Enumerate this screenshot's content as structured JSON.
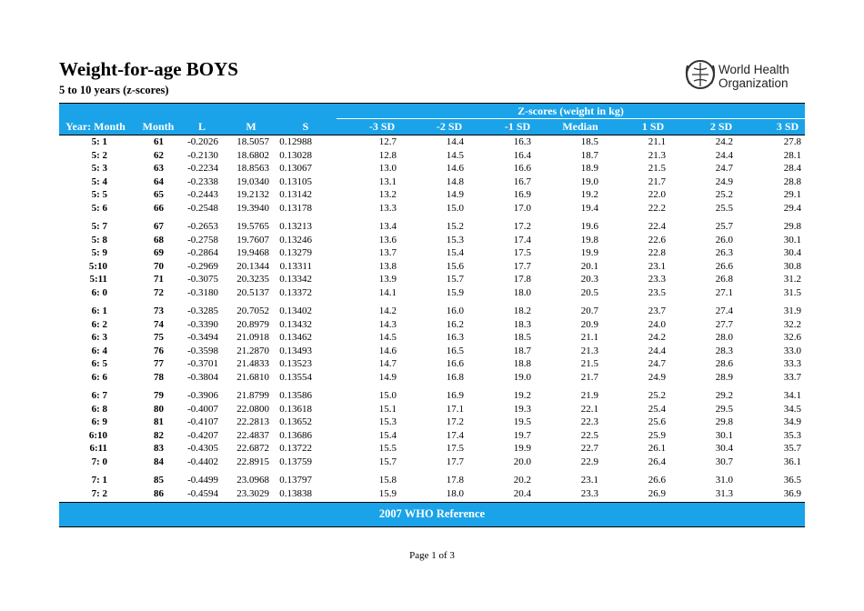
{
  "header": {
    "title": "Weight-for-age BOYS",
    "subtitle": "5 to 10 years (z-scores)",
    "logo": [
      "World Health",
      "Organization"
    ]
  },
  "table": {
    "group_header": "Z-scores (weight in kg)",
    "columns": [
      "Year: Month",
      "Month",
      "L",
      "M",
      "S",
      "-3 SD",
      "-2 SD",
      "-1 SD",
      "Median",
      "1 SD",
      "2 SD",
      "3 SD"
    ],
    "rows": [
      [
        "5: 1",
        "61",
        "-0.2026",
        "18.5057",
        "0.12988",
        "12.7",
        "14.4",
        "16.3",
        "18.5",
        "21.1",
        "24.2",
        "27.8"
      ],
      [
        "5: 2",
        "62",
        "-0.2130",
        "18.6802",
        "0.13028",
        "12.8",
        "14.5",
        "16.4",
        "18.7",
        "21.3",
        "24.4",
        "28.1"
      ],
      [
        "5: 3",
        "63",
        "-0.2234",
        "18.8563",
        "0.13067",
        "13.0",
        "14.6",
        "16.6",
        "18.9",
        "21.5",
        "24.7",
        "28.4"
      ],
      [
        "5: 4",
        "64",
        "-0.2338",
        "19.0340",
        "0.13105",
        "13.1",
        "14.8",
        "16.7",
        "19.0",
        "21.7",
        "24.9",
        "28.8"
      ],
      [
        "5: 5",
        "65",
        "-0.2443",
        "19.2132",
        "0.13142",
        "13.2",
        "14.9",
        "16.9",
        "19.2",
        "22.0",
        "25.2",
        "29.1"
      ],
      [
        "5: 6",
        "66",
        "-0.2548",
        "19.3940",
        "0.13178",
        "13.3",
        "15.0",
        "17.0",
        "19.4",
        "22.2",
        "25.5",
        "29.4"
      ],
      [
        "5: 7",
        "67",
        "-0.2653",
        "19.5765",
        "0.13213",
        "13.4",
        "15.2",
        "17.2",
        "19.6",
        "22.4",
        "25.7",
        "29.8"
      ],
      [
        "5: 8",
        "68",
        "-0.2758",
        "19.7607",
        "0.13246",
        "13.6",
        "15.3",
        "17.4",
        "19.8",
        "22.6",
        "26.0",
        "30.1"
      ],
      [
        "5: 9",
        "69",
        "-0.2864",
        "19.9468",
        "0.13279",
        "13.7",
        "15.4",
        "17.5",
        "19.9",
        "22.8",
        "26.3",
        "30.4"
      ],
      [
        "5:10",
        "70",
        "-0.2969",
        "20.1344",
        "0.13311",
        "13.8",
        "15.6",
        "17.7",
        "20.1",
        "23.1",
        "26.6",
        "30.8"
      ],
      [
        "5:11",
        "71",
        "-0.3075",
        "20.3235",
        "0.13342",
        "13.9",
        "15.7",
        "17.8",
        "20.3",
        "23.3",
        "26.8",
        "31.2"
      ],
      [
        "6: 0",
        "72",
        "-0.3180",
        "20.5137",
        "0.13372",
        "14.1",
        "15.9",
        "18.0",
        "20.5",
        "23.5",
        "27.1",
        "31.5"
      ],
      [
        "6: 1",
        "73",
        "-0.3285",
        "20.7052",
        "0.13402",
        "14.2",
        "16.0",
        "18.2",
        "20.7",
        "23.7",
        "27.4",
        "31.9"
      ],
      [
        "6: 2",
        "74",
        "-0.3390",
        "20.8979",
        "0.13432",
        "14.3",
        "16.2",
        "18.3",
        "20.9",
        "24.0",
        "27.7",
        "32.2"
      ],
      [
        "6: 3",
        "75",
        "-0.3494",
        "21.0918",
        "0.13462",
        "14.5",
        "16.3",
        "18.5",
        "21.1",
        "24.2",
        "28.0",
        "32.6"
      ],
      [
        "6: 4",
        "76",
        "-0.3598",
        "21.2870",
        "0.13493",
        "14.6",
        "16.5",
        "18.7",
        "21.3",
        "24.4",
        "28.3",
        "33.0"
      ],
      [
        "6: 5",
        "77",
        "-0.3701",
        "21.4833",
        "0.13523",
        "14.7",
        "16.6",
        "18.8",
        "21.5",
        "24.7",
        "28.6",
        "33.3"
      ],
      [
        "6: 6",
        "78",
        "-0.3804",
        "21.6810",
        "0.13554",
        "14.9",
        "16.8",
        "19.0",
        "21.7",
        "24.9",
        "28.9",
        "33.7"
      ],
      [
        "6: 7",
        "79",
        "-0.3906",
        "21.8799",
        "0.13586",
        "15.0",
        "16.9",
        "19.2",
        "21.9",
        "25.2",
        "29.2",
        "34.1"
      ],
      [
        "6: 8",
        "80",
        "-0.4007",
        "22.0800",
        "0.13618",
        "15.1",
        "17.1",
        "19.3",
        "22.1",
        "25.4",
        "29.5",
        "34.5"
      ],
      [
        "6: 9",
        "81",
        "-0.4107",
        "22.2813",
        "0.13652",
        "15.3",
        "17.2",
        "19.5",
        "22.3",
        "25.6",
        "29.8",
        "34.9"
      ],
      [
        "6:10",
        "82",
        "-0.4207",
        "22.4837",
        "0.13686",
        "15.4",
        "17.4",
        "19.7",
        "22.5",
        "25.9",
        "30.1",
        "35.3"
      ],
      [
        "6:11",
        "83",
        "-0.4305",
        "22.6872",
        "0.13722",
        "15.5",
        "17.5",
        "19.9",
        "22.7",
        "26.1",
        "30.4",
        "35.7"
      ],
      [
        "7: 0",
        "84",
        "-0.4402",
        "22.8915",
        "0.13759",
        "15.7",
        "17.7",
        "20.0",
        "22.9",
        "26.4",
        "30.7",
        "36.1"
      ],
      [
        "7: 1",
        "85",
        "-0.4499",
        "23.0968",
        "0.13797",
        "15.8",
        "17.8",
        "20.2",
        "23.1",
        "26.6",
        "31.0",
        "36.5"
      ],
      [
        "7: 2",
        "86",
        "-0.4594",
        "23.3029",
        "0.13838",
        "15.9",
        "18.0",
        "20.4",
        "23.3",
        "26.9",
        "31.3",
        "36.9"
      ]
    ]
  },
  "footer": "2007 WHO Reference",
  "page": "Page 1 of 3"
}
